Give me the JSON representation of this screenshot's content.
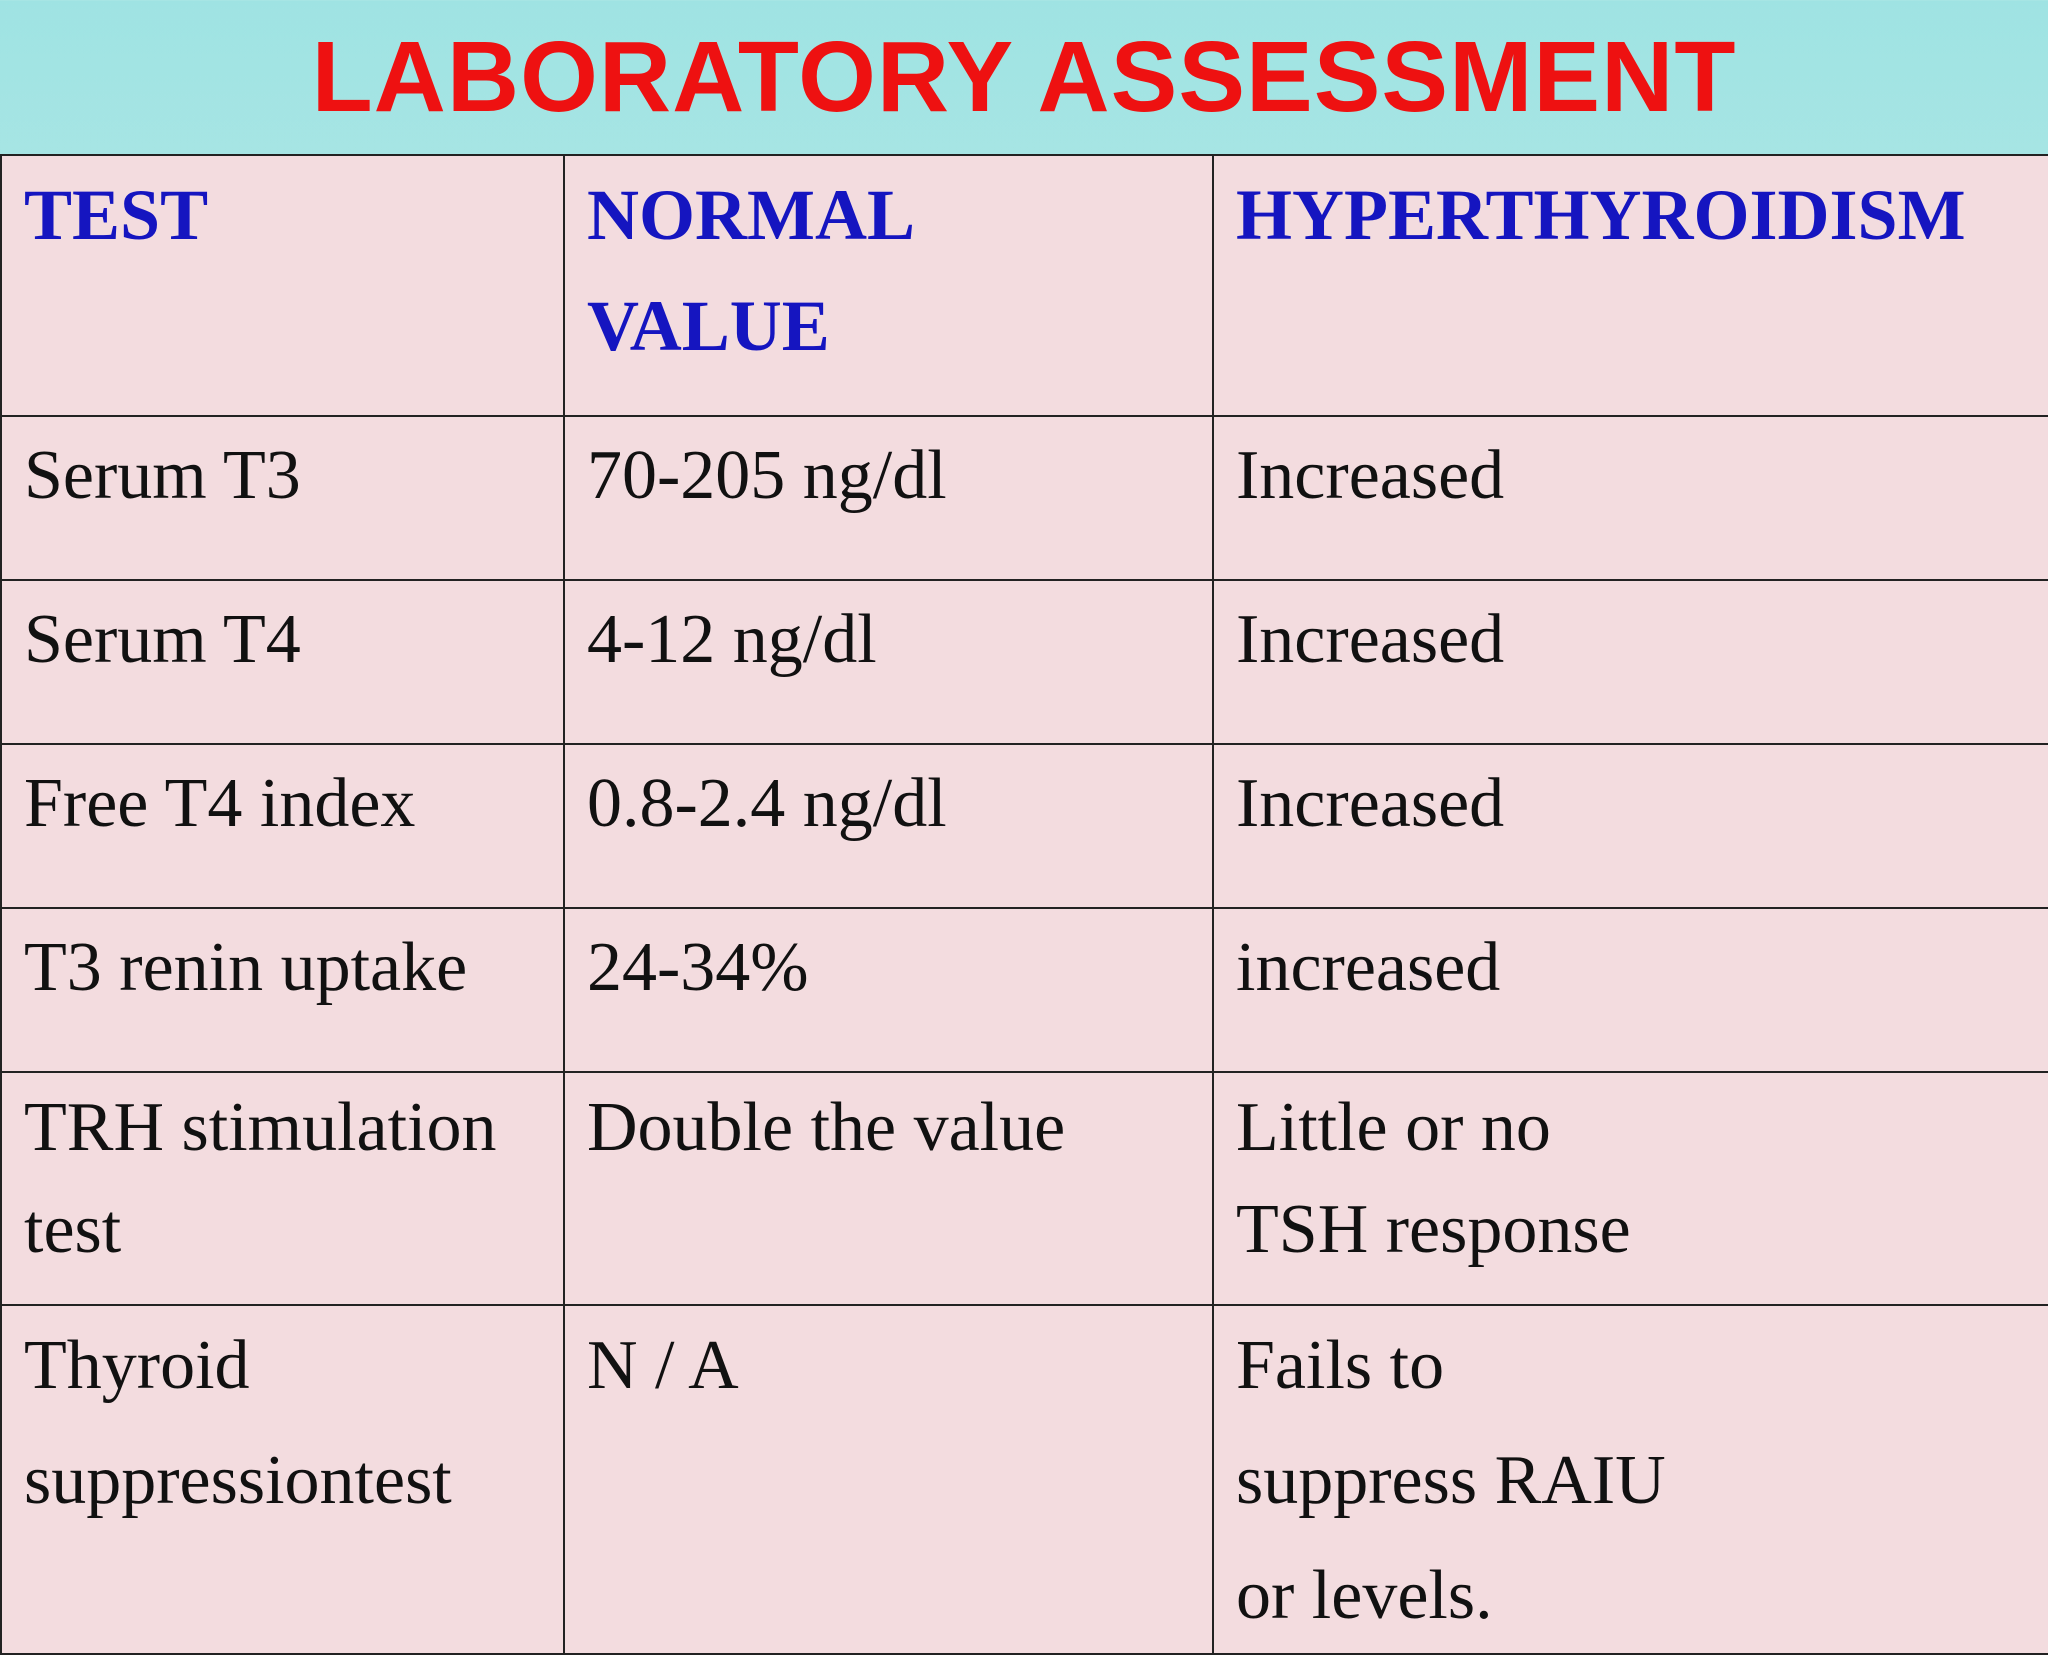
{
  "header": {
    "title": "LABORATORY ASSESSMENT"
  },
  "table": {
    "columns": [
      "TEST",
      "NORMAL VALUE",
      "HYPERTHYROIDISM"
    ],
    "rows": [
      [
        "Serum T3",
        "70-205 ng/dl",
        "Increased"
      ],
      [
        "Serum T4",
        "4-12 ng/dl",
        "Increased"
      ],
      [
        "Free T4 index",
        "0.8-2.4 ng/dl",
        "Increased"
      ],
      [
        "T3 renin uptake",
        "24-34%",
        "increased"
      ],
      [
        "TRH stimulation test",
        "Double the value",
        "Little or no TSH response"
      ],
      [
        "Thyroid suppressiontest",
        "N / A",
        "Fails to suppress RAIU or levels."
      ]
    ]
  }
}
